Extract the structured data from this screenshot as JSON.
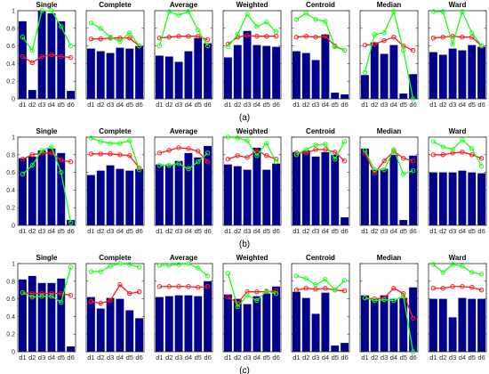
{
  "figure": {
    "methods": [
      "Single",
      "Complete",
      "Average",
      "Weighted",
      "Centroid",
      "Median",
      "Ward"
    ],
    "categories": [
      "d1",
      "d2",
      "d3",
      "d4",
      "d5",
      "d6"
    ],
    "yticks": [
      "0",
      "0.2",
      "0.4",
      "0.6",
      "0.8",
      "1"
    ],
    "ylim": [
      0,
      1
    ],
    "colors": {
      "bar": "#00008b",
      "red_line": "#ff1a1a",
      "green_line": "#1aff1a"
    }
  },
  "chart_data": [
    {
      "panel_label": "(a)",
      "type": "bar",
      "categories": [
        "d1",
        "d2",
        "d3",
        "d4",
        "d5",
        "d6"
      ],
      "subplots": [
        {
          "title": "Single",
          "bars": [
            0.88,
            0.1,
            1.0,
            0.97,
            0.88,
            0.09
          ],
          "red": [
            0.48,
            0.41,
            0.48,
            0.5,
            0.48,
            0.47
          ],
          "green": [
            0.7,
            0.55,
            1.0,
            1.0,
            0.82,
            0.6
          ]
        },
        {
          "title": "Complete",
          "bars": [
            0.57,
            0.54,
            0.52,
            0.58,
            0.57,
            0.6
          ],
          "red": [
            0.68,
            0.68,
            0.69,
            0.69,
            0.69,
            0.6
          ],
          "green": [
            0.86,
            0.8,
            0.7,
            0.65,
            0.75,
            0.6
          ]
        },
        {
          "title": "Average",
          "bars": [
            0.49,
            0.48,
            0.42,
            0.54,
            0.69,
            0.63
          ],
          "red": [
            0.69,
            0.7,
            0.71,
            0.71,
            0.71,
            0.67
          ],
          "green": [
            0.6,
            0.99,
            0.95,
            0.99,
            0.78,
            0.6
          ]
        },
        {
          "title": "Weighted",
          "bars": [
            0.47,
            0.61,
            0.77,
            0.61,
            0.6,
            0.59
          ],
          "red": [
            0.62,
            0.7,
            0.72,
            0.71,
            0.71,
            0.71
          ],
          "green": [
            0.59,
            0.73,
            0.96,
            0.82,
            0.87,
            0.76
          ]
        },
        {
          "title": "Centroid",
          "bars": [
            0.54,
            0.52,
            0.44,
            0.73,
            0.07,
            0.05
          ],
          "red": [
            0.7,
            0.71,
            0.7,
            0.71,
            0.6,
            0.55
          ],
          "green": [
            0.9,
            0.97,
            0.9,
            0.88,
            0.59,
            0.55
          ]
        },
        {
          "title": "Median",
          "bars": [
            0.27,
            0.64,
            0.51,
            0.61,
            0.06,
            0.28
          ],
          "red": [
            0.61,
            0.62,
            0.66,
            0.7,
            0.6,
            0.55
          ],
          "green": [
            0.3,
            0.73,
            0.75,
            0.99,
            0.55,
            0.0
          ]
        },
        {
          "title": "Ward",
          "bars": [
            0.53,
            0.5,
            0.57,
            0.55,
            0.61,
            0.59
          ],
          "red": [
            0.69,
            0.7,
            0.71,
            0.7,
            0.7,
            0.6
          ],
          "green": [
            0.99,
            0.99,
            0.62,
            0.99,
            0.75,
            0.6
          ]
        }
      ]
    },
    {
      "panel_label": "(b)",
      "type": "bar",
      "categories": [
        "d1",
        "d2",
        "d3",
        "d4",
        "d5",
        "d6"
      ],
      "subplots": [
        {
          "title": "Single",
          "bars": [
            0.76,
            0.78,
            0.85,
            0.87,
            0.82,
            0.06
          ],
          "red": [
            0.75,
            0.8,
            0.82,
            0.82,
            0.74,
            0.72
          ],
          "green": [
            0.58,
            0.68,
            0.85,
            0.89,
            0.6,
            0.03
          ]
        },
        {
          "title": "Complete",
          "bars": [
            0.57,
            0.62,
            0.68,
            0.64,
            0.62,
            0.64
          ],
          "red": [
            0.81,
            0.81,
            0.81,
            0.8,
            0.79,
            0.65
          ],
          "green": [
            0.99,
            0.95,
            0.93,
            0.93,
            0.96,
            0.63
          ]
        },
        {
          "title": "Average",
          "bars": [
            0.69,
            0.69,
            0.73,
            0.82,
            0.77,
            0.9
          ],
          "red": [
            0.82,
            0.85,
            0.88,
            0.87,
            0.84,
            0.72
          ],
          "green": [
            0.68,
            0.68,
            0.7,
            0.64,
            0.72,
            0.82
          ]
        },
        {
          "title": "Weighted",
          "bars": [
            0.69,
            0.67,
            0.63,
            0.88,
            0.63,
            0.7
          ],
          "red": [
            0.75,
            0.79,
            0.77,
            0.85,
            0.79,
            0.75
          ],
          "green": [
            1.0,
            0.99,
            0.96,
            0.79,
            0.93,
            0.72
          ]
        },
        {
          "title": "Centroid",
          "bars": [
            0.83,
            0.85,
            0.78,
            0.83,
            0.8,
            0.09
          ],
          "red": [
            0.82,
            0.82,
            0.86,
            0.86,
            0.83,
            0.73
          ],
          "green": [
            0.8,
            0.86,
            0.91,
            0.92,
            0.75,
            0.95
          ]
        },
        {
          "title": "Median",
          "bars": [
            0.87,
            0.63,
            0.64,
            0.8,
            0.06,
            0.79
          ],
          "red": [
            0.82,
            0.59,
            0.73,
            0.84,
            0.76,
            0.73
          ],
          "green": [
            0.85,
            0.63,
            0.63,
            0.86,
            0.58,
            0.62
          ]
        },
        {
          "title": "Ward",
          "bars": [
            0.6,
            0.6,
            0.6,
            0.62,
            0.6,
            0.59
          ],
          "red": [
            0.8,
            0.8,
            0.82,
            0.83,
            0.8,
            0.76
          ],
          "green": [
            0.95,
            0.89,
            0.86,
            0.97,
            0.87,
            0.67
          ]
        }
      ]
    },
    {
      "panel_label": "(c)",
      "type": "bar",
      "categories": [
        "d1",
        "d2",
        "d3",
        "d4",
        "d5",
        "d6"
      ],
      "subplots": [
        {
          "title": "Single",
          "bars": [
            0.82,
            0.86,
            0.78,
            0.78,
            0.83,
            0.06
          ],
          "red": [
            0.67,
            0.66,
            0.66,
            0.66,
            0.66,
            0.64
          ],
          "green": [
            0.67,
            0.62,
            0.63,
            0.63,
            0.56,
            0.96
          ]
        },
        {
          "title": "Complete",
          "bars": [
            0.62,
            0.49,
            0.61,
            0.6,
            0.47,
            0.38
          ],
          "red": [
            0.57,
            0.55,
            0.58,
            0.76,
            0.66,
            0.68
          ],
          "green": [
            0.91,
            0.91,
            0.97,
            1.0,
            0.99,
            0.96
          ]
        },
        {
          "title": "Average",
          "bars": [
            0.62,
            0.63,
            0.64,
            0.64,
            0.63,
            0.8
          ],
          "red": [
            0.74,
            0.74,
            0.74,
            0.74,
            0.73,
            0.74
          ],
          "green": [
            0.98,
            0.98,
            0.99,
            1.0,
            0.95,
            0.86
          ]
        },
        {
          "title": "Weighted",
          "bars": [
            0.65,
            0.6,
            0.54,
            0.63,
            0.66,
            0.74
          ],
          "red": [
            0.62,
            0.55,
            0.68,
            0.68,
            0.68,
            0.69
          ],
          "green": [
            0.89,
            0.51,
            0.64,
            0.58,
            0.69,
            0.66
          ]
        },
        {
          "title": "Centroid",
          "bars": [
            0.68,
            0.61,
            0.43,
            0.67,
            0.07,
            0.1
          ],
          "red": [
            0.7,
            0.72,
            0.71,
            0.72,
            0.7,
            0.69
          ],
          "green": [
            0.86,
            0.83,
            0.76,
            0.82,
            0.7,
            0.81
          ]
        },
        {
          "title": "Median",
          "bars": [
            0.64,
            0.6,
            0.64,
            0.6,
            0.61,
            0.73
          ],
          "red": [
            0.61,
            0.6,
            0.61,
            0.72,
            0.66,
            0.38
          ],
          "green": [
            0.61,
            0.58,
            0.59,
            0.58,
            0.63,
            0.0
          ]
        },
        {
          "title": "Ward",
          "bars": [
            0.6,
            0.6,
            0.39,
            0.61,
            0.6,
            0.6
          ],
          "red": [
            0.72,
            0.72,
            0.74,
            0.74,
            0.73,
            0.7
          ],
          "green": [
            0.99,
            0.9,
            0.99,
            0.97,
            0.9,
            0.88
          ]
        }
      ]
    }
  ]
}
